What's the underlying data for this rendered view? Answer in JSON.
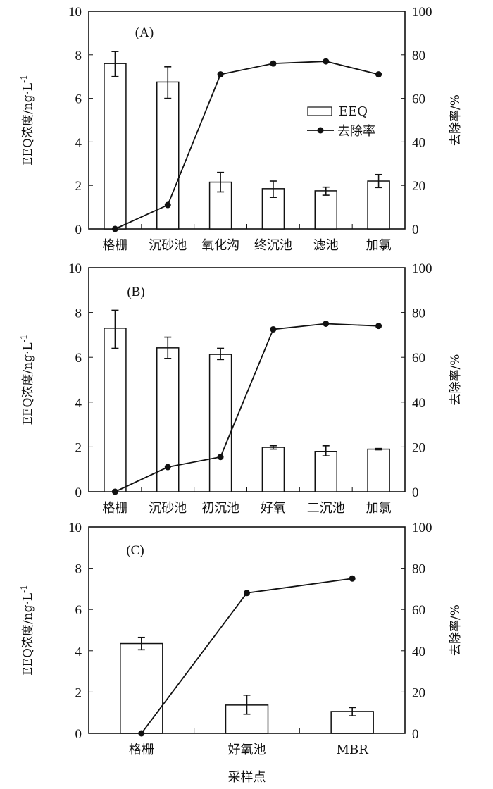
{
  "colors": {
    "ink": "#111111",
    "bar_fill": "#ffffff"
  },
  "legend": {
    "bar_label": "EEQ",
    "line_label": "去除率"
  },
  "x_axis_title": "采样点",
  "chart_data": [
    {
      "type": "bar+line",
      "panel_label": "(A)",
      "categories": [
        "格栅",
        "沉砂池",
        "氧化沟",
        "终沉池",
        "滤池",
        "加氯"
      ],
      "ylabel_left": "EEQ浓度/ng·L",
      "ylabel_left_sup": "-1",
      "ylabel_right": "去除率/%",
      "ylim_left": [
        0,
        10
      ],
      "yticks_left": [
        "0",
        "2",
        "4",
        "6",
        "8",
        "10"
      ],
      "ylim_right": [
        0,
        100
      ],
      "yticks_right": [
        "0",
        "20",
        "40",
        "60",
        "80",
        "100"
      ],
      "legend": "center-right",
      "series": [
        {
          "name": "EEQ",
          "type": "bar",
          "values": [
            7.6,
            6.75,
            2.15,
            1.85,
            1.75,
            2.2
          ],
          "err_low": [
            7.0,
            6.0,
            1.7,
            1.45,
            1.55,
            1.9
          ],
          "err_high": [
            8.15,
            7.45,
            2.6,
            2.2,
            1.92,
            2.5
          ]
        },
        {
          "name": "去除率",
          "type": "line",
          "axis": "right",
          "values": [
            0,
            11,
            71,
            76,
            77,
            71
          ]
        }
      ],
      "show_legend": true
    },
    {
      "type": "bar+line",
      "panel_label": "(B)",
      "categories": [
        "格栅",
        "沉砂池",
        "初沉池",
        "好氧",
        "二沉池",
        "加氯"
      ],
      "ylabel_left": "EEQ浓度/ng·L",
      "ylabel_left_sup": "-1",
      "ylabel_right": "去除率/%",
      "ylim_left": [
        0,
        10
      ],
      "yticks_left": [
        "0",
        "2",
        "4",
        "6",
        "8",
        "10"
      ],
      "ylim_right": [
        0,
        100
      ],
      "yticks_right": [
        "0",
        "20",
        "40",
        "60",
        "80",
        "100"
      ],
      "series": [
        {
          "name": "EEQ",
          "type": "bar",
          "values": [
            7.3,
            6.42,
            6.13,
            1.98,
            1.8,
            1.9
          ],
          "err_low": [
            6.4,
            5.95,
            5.9,
            1.9,
            1.6,
            1.87
          ],
          "err_high": [
            8.1,
            6.9,
            6.4,
            2.05,
            2.05,
            1.93
          ]
        },
        {
          "name": "去除率",
          "type": "line",
          "axis": "right",
          "values": [
            0,
            11,
            15.5,
            72.5,
            75,
            74
          ]
        }
      ],
      "show_legend": false
    },
    {
      "type": "bar+line",
      "panel_label": "(C)",
      "categories": [
        "格栅",
        "好氧池",
        "MBR"
      ],
      "ylabel_left": "EEQ浓度/ng·L",
      "ylabel_left_sup": "-1",
      "ylabel_right": "去除率/%",
      "ylim_left": [
        0,
        10
      ],
      "yticks_left": [
        "0",
        "2",
        "4",
        "6",
        "8",
        "10"
      ],
      "ylim_right": [
        0,
        100
      ],
      "yticks_right": [
        "0",
        "20",
        "40",
        "60",
        "80",
        "100"
      ],
      "series": [
        {
          "name": "EEQ",
          "type": "bar",
          "values": [
            4.35,
            1.37,
            1.06
          ],
          "err_low": [
            4.05,
            0.93,
            0.85
          ],
          "err_high": [
            4.65,
            1.85,
            1.25
          ]
        },
        {
          "name": "去除率",
          "type": "line",
          "axis": "right",
          "values": [
            0,
            68,
            75
          ]
        }
      ],
      "show_legend": false,
      "xlabel": "采样点"
    }
  ]
}
